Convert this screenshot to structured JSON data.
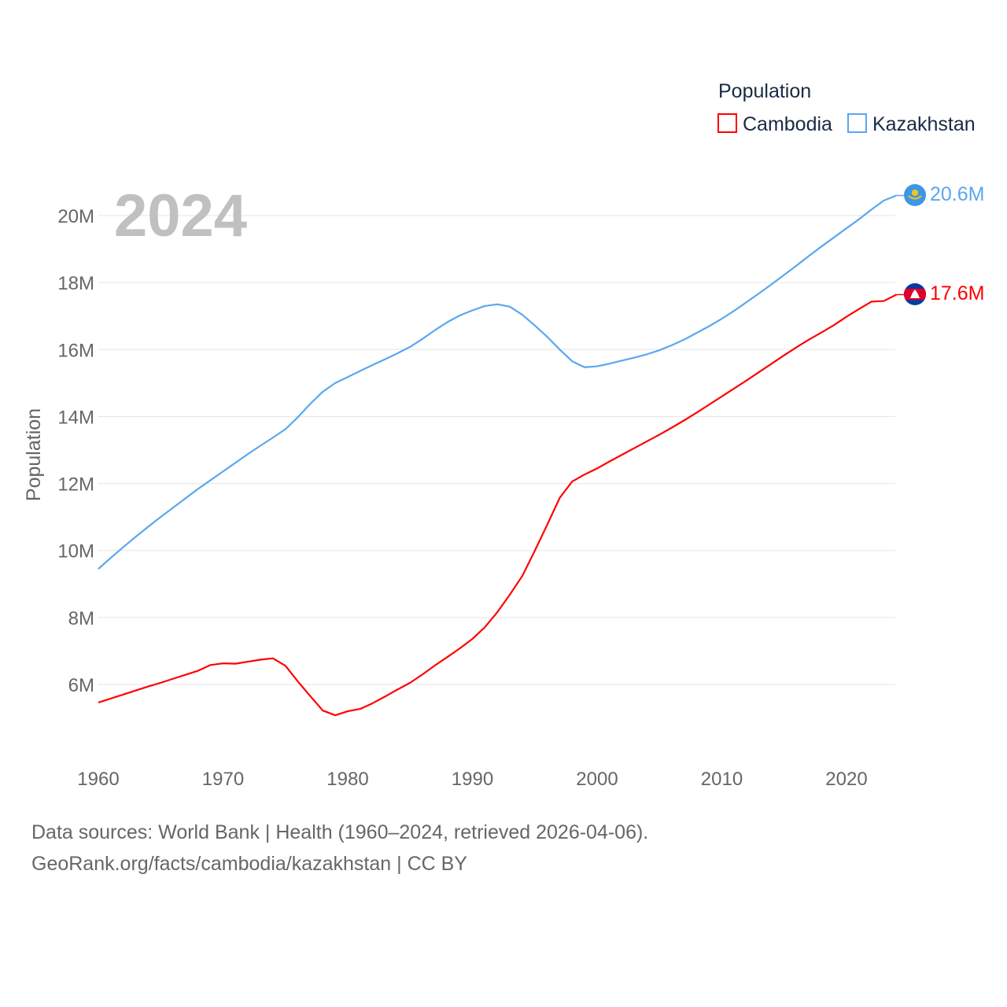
{
  "chart_data": {
    "type": "line",
    "title": "2024",
    "xlabel": "",
    "ylabel": "Population",
    "xlim": [
      1960,
      2024
    ],
    "ylim": [
      4.5,
      21
    ],
    "x_ticks": [
      1960,
      1970,
      1980,
      1990,
      2000,
      2010,
      2020
    ],
    "x_tick_labels": [
      "1960",
      "1970",
      "1980",
      "1990",
      "2000",
      "2010",
      "2020"
    ],
    "y_ticks": [
      6,
      8,
      10,
      12,
      14,
      16,
      18,
      20
    ],
    "y_tick_labels": [
      "6M",
      "8M",
      "10M",
      "12M",
      "14M",
      "16M",
      "18M",
      "20M"
    ],
    "grid": true,
    "legend": {
      "title": "Population",
      "placement": "top-right"
    },
    "x": [
      1960,
      1961,
      1962,
      1963,
      1964,
      1965,
      1966,
      1967,
      1968,
      1969,
      1970,
      1971,
      1972,
      1973,
      1974,
      1975,
      1976,
      1977,
      1978,
      1979,
      1980,
      1981,
      1982,
      1983,
      1984,
      1985,
      1986,
      1987,
      1988,
      1989,
      1990,
      1991,
      1992,
      1993,
      1994,
      1995,
      1996,
      1997,
      1998,
      1999,
      2000,
      2001,
      2002,
      2003,
      2004,
      2005,
      2006,
      2007,
      2008,
      2009,
      2010,
      2011,
      2012,
      2013,
      2014,
      2015,
      2016,
      2017,
      2018,
      2019,
      2020,
      2021,
      2022,
      2023,
      2024
    ],
    "series": [
      {
        "name": "Cambodia",
        "color": "#ff0000",
        "end_label": "17.6M",
        "values": [
          5.46,
          5.58,
          5.7,
          5.82,
          5.94,
          6.05,
          6.17,
          6.29,
          6.41,
          6.58,
          6.63,
          6.62,
          6.68,
          6.74,
          6.78,
          6.56,
          6.09,
          5.65,
          5.22,
          5.08,
          5.2,
          5.27,
          5.44,
          5.64,
          5.85,
          6.05,
          6.3,
          6.57,
          6.82,
          7.08,
          7.36,
          7.71,
          8.16,
          8.68,
          9.24,
          9.99,
          10.77,
          11.57,
          12.06,
          12.27,
          12.45,
          12.66,
          12.86,
          13.06,
          13.26,
          13.46,
          13.67,
          13.89,
          14.12,
          14.36,
          14.6,
          14.84,
          15.08,
          15.33,
          15.58,
          15.83,
          16.07,
          16.3,
          16.51,
          16.73,
          16.98,
          17.21,
          17.43,
          17.45,
          17.64
        ]
      },
      {
        "name": "Kazakhstan",
        "color": "#5ba7ef",
        "end_label": "20.6M",
        "values": [
          9.45,
          9.78,
          10.1,
          10.41,
          10.71,
          11.0,
          11.28,
          11.56,
          11.84,
          12.1,
          12.36,
          12.62,
          12.88,
          13.13,
          13.37,
          13.62,
          13.98,
          14.38,
          14.74,
          15.0,
          15.18,
          15.36,
          15.54,
          15.71,
          15.89,
          16.08,
          16.32,
          16.58,
          16.82,
          17.02,
          17.17,
          17.3,
          17.35,
          17.28,
          17.04,
          16.72,
          16.38,
          16.0,
          15.65,
          15.47,
          15.5,
          15.58,
          15.67,
          15.76,
          15.86,
          15.98,
          16.13,
          16.3,
          16.5,
          16.7,
          16.92,
          17.16,
          17.42,
          17.68,
          17.95,
          18.23,
          18.51,
          18.8,
          19.08,
          19.35,
          19.62,
          19.89,
          20.18,
          20.45,
          20.6
        ]
      }
    ]
  },
  "footer": {
    "line1": "Data sources: World Bank | Health (1960–2024, retrieved 2026-04-06).",
    "line2": "GeoRank.org/facts/cambodia/kazakhstan | CC BY"
  }
}
